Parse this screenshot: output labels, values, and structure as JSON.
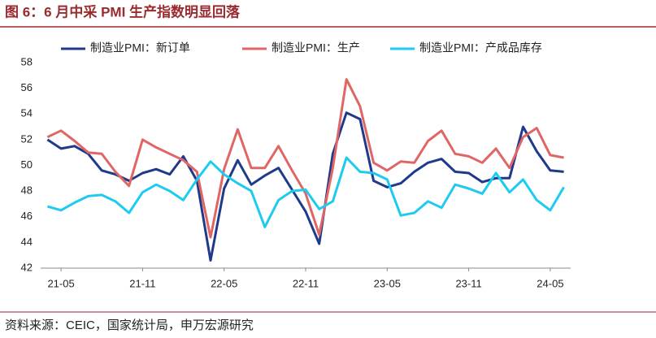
{
  "chart_data": {
    "type": "line",
    "title": "图 6：6 月中采 PMI 生产指数明显回落",
    "source": "资料来源：CEIC，国家统计局，申万宏源研究",
    "categories": [
      null,
      "21-05",
      null,
      null,
      null,
      null,
      null,
      "21-11",
      null,
      null,
      null,
      null,
      null,
      "22-05",
      null,
      null,
      null,
      null,
      null,
      "22-11",
      null,
      null,
      null,
      null,
      null,
      "23-05",
      null,
      null,
      null,
      null,
      null,
      "23-11",
      null,
      null,
      null,
      null,
      null,
      "24-05",
      null
    ],
    "series": [
      {
        "name": "制造业PMI：新订单",
        "color": "#1f3a8a",
        "values": [
          52.0,
          51.3,
          51.5,
          50.9,
          49.6,
          49.3,
          48.8,
          49.4,
          49.7,
          49.3,
          50.7,
          48.8,
          42.6,
          48.2,
          50.4,
          48.5,
          49.2,
          49.8,
          48.1,
          46.4,
          43.9,
          50.9,
          54.1,
          53.6,
          48.8,
          48.3,
          48.6,
          49.5,
          50.2,
          50.5,
          49.5,
          49.4,
          48.7,
          49.0,
          49.0,
          53.0,
          51.1,
          49.6,
          49.5
        ]
      },
      {
        "name": "制造业PMI：生产",
        "color": "#e06666",
        "values": [
          52.2,
          52.7,
          51.9,
          51.0,
          50.9,
          49.5,
          48.4,
          52.0,
          51.4,
          50.9,
          50.4,
          49.5,
          44.4,
          49.7,
          52.8,
          49.8,
          49.8,
          51.5,
          49.6,
          47.8,
          44.6,
          49.8,
          56.7,
          54.6,
          50.2,
          49.6,
          50.3,
          50.2,
          51.9,
          52.7,
          50.9,
          50.7,
          50.2,
          51.3,
          49.8,
          52.2,
          52.9,
          50.8,
          50.6
        ]
      },
      {
        "name": "制造业PMI：产成品库存",
        "color": "#1ecbf0",
        "values": [
          46.8,
          46.5,
          47.1,
          47.6,
          47.7,
          47.2,
          46.3,
          47.9,
          48.5,
          48.0,
          47.3,
          48.9,
          50.3,
          49.3,
          48.6,
          48.0,
          45.2,
          47.3,
          48.0,
          48.1,
          46.6,
          47.2,
          50.6,
          49.5,
          49.4,
          48.9,
          46.1,
          46.3,
          47.2,
          46.7,
          48.5,
          48.2,
          47.8,
          49.4,
          47.9,
          48.9,
          47.3,
          46.5,
          48.3
        ]
      }
    ],
    "ylim": [
      42,
      58
    ],
    "yticks": [
      42,
      44,
      46,
      48,
      50,
      52,
      54,
      56,
      58
    ],
    "grid": false,
    "legend": "top"
  }
}
